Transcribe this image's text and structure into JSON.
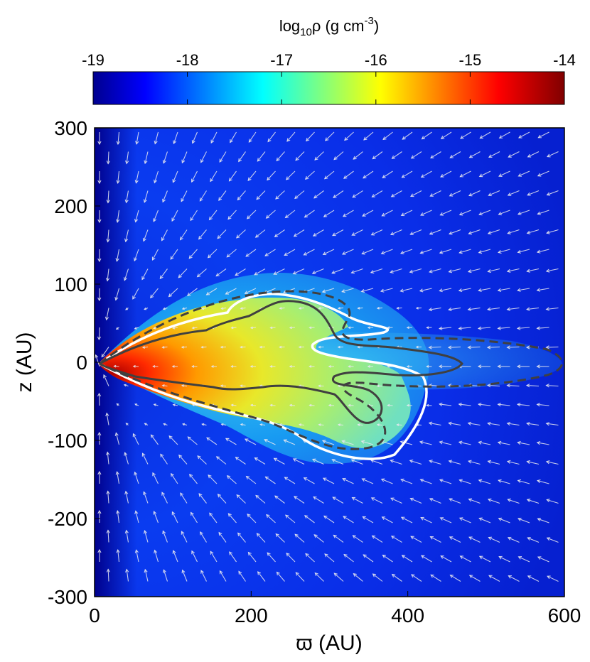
{
  "chart_data": {
    "type": "heatmap",
    "title": "",
    "colorbar": {
      "label_prefix": "log",
      "label_sub": "10",
      "label_mid": "ρ (g cm",
      "label_sup": "-3",
      "label_suffix": ")",
      "range": [
        -19,
        -14
      ],
      "ticks": [
        "-19",
        "-18",
        "-17",
        "-16",
        "-15",
        "-14"
      ],
      "colormap": "jet"
    },
    "xlabel": "ϖ (AU)",
    "ylabel": "z (AU)",
    "xlim": [
      0,
      600
    ],
    "ylim": [
      -300,
      300
    ],
    "xticks": [
      "0",
      "200",
      "400",
      "600"
    ],
    "yticks": [
      "300",
      "200",
      "100",
      "0",
      "-100",
      "-200",
      "-300"
    ],
    "grid": false,
    "overlays": {
      "velocity_field": "arrows",
      "contours": [
        {
          "style": "solid",
          "color": "#ffffff"
        },
        {
          "style": "solid",
          "color": "#404040"
        },
        {
          "style": "dashed",
          "color": "#404040"
        }
      ]
    }
  }
}
